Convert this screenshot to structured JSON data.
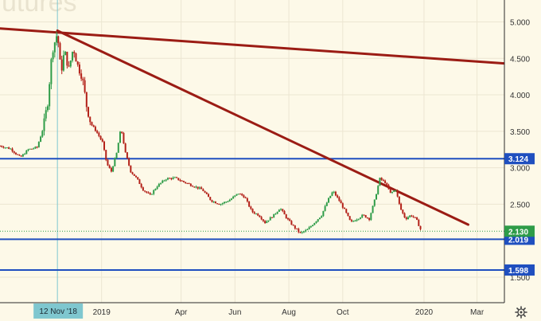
{
  "watermark": "utures",
  "chart_data": {
    "type": "candlestick",
    "y_axis": {
      "ticks": [
        "5.000",
        "4.500",
        "4.000",
        "3.500",
        "3.000",
        "2.500",
        "1.500"
      ],
      "tick_values": [
        5.0,
        4.5,
        4.0,
        3.5,
        3.0,
        2.5,
        1.5
      ],
      "range": [
        1.15,
        5.3
      ]
    },
    "x_axis": {
      "ticks": [
        "2019",
        "Apr",
        "Jun",
        "Aug",
        "Oct",
        "2020",
        "Mar"
      ],
      "tick_dates": [
        "2019-01-01",
        "2019-04-01",
        "2019-06-01",
        "2019-08-01",
        "2019-10-01",
        "2020-01-01",
        "2020-03-01"
      ],
      "range": [
        "2018-09-08",
        "2020-04-01"
      ],
      "crosshair_label": "12 Nov '18",
      "crosshair_date": "2018-11-12"
    },
    "horizontal_levels": [
      {
        "value": 3.124,
        "label": "3.124",
        "color": "#1f4fbf"
      },
      {
        "value": 2.019,
        "label": "2.019",
        "color": "#1f4fbf"
      },
      {
        "value": 1.598,
        "label": "1.598",
        "color": "#1f4fbf"
      }
    ],
    "last_price": {
      "value": 2.13,
      "label": "2.130",
      "color": "#2e9c48"
    },
    "trendlines": [
      {
        "color": "#9b1c14",
        "points": [
          [
            "2018-09-08",
            4.91
          ],
          [
            "2020-04-01",
            4.43
          ]
        ]
      },
      {
        "color": "#9b1c14",
        "points": [
          [
            "2018-11-12",
            4.88
          ],
          [
            "2020-02-20",
            2.22
          ]
        ]
      }
    ],
    "series": [
      {
        "name": "",
        "up_color": "#2e9c48",
        "down_color": "#b32018",
        "points": [
          [
            "2018-09-08",
            3.3
          ],
          [
            "2018-09-20",
            3.26
          ],
          [
            "2018-10-01",
            3.14
          ],
          [
            "2018-10-10",
            3.25
          ],
          [
            "2018-10-20",
            3.28
          ],
          [
            "2018-10-27",
            3.55
          ],
          [
            "2018-11-01",
            3.9
          ],
          [
            "2018-11-06",
            4.6
          ],
          [
            "2018-11-12",
            4.85
          ],
          [
            "2018-11-16",
            4.3
          ],
          [
            "2018-11-20",
            4.6
          ],
          [
            "2018-11-25",
            4.35
          ],
          [
            "2018-11-30",
            4.65
          ],
          [
            "2018-12-05",
            4.4
          ],
          [
            "2018-12-10",
            4.25
          ],
          [
            "2018-12-15",
            3.85
          ],
          [
            "2018-12-20",
            3.6
          ],
          [
            "2018-12-26",
            3.5
          ],
          [
            "2019-01-02",
            3.35
          ],
          [
            "2019-01-07",
            3.05
          ],
          [
            "2019-01-12",
            2.95
          ],
          [
            "2019-01-18",
            3.2
          ],
          [
            "2019-01-23",
            3.55
          ],
          [
            "2019-01-28",
            3.2
          ],
          [
            "2019-02-03",
            2.95
          ],
          [
            "2019-02-10",
            2.85
          ],
          [
            "2019-02-17",
            2.7
          ],
          [
            "2019-02-25",
            2.62
          ],
          [
            "2019-03-05",
            2.75
          ],
          [
            "2019-03-15",
            2.85
          ],
          [
            "2019-03-25",
            2.86
          ],
          [
            "2019-04-05",
            2.8
          ],
          [
            "2019-04-15",
            2.75
          ],
          [
            "2019-04-25",
            2.7
          ],
          [
            "2019-05-05",
            2.55
          ],
          [
            "2019-05-15",
            2.5
          ],
          [
            "2019-05-25",
            2.55
          ],
          [
            "2019-06-05",
            2.65
          ],
          [
            "2019-06-12",
            2.6
          ],
          [
            "2019-06-20",
            2.4
          ],
          [
            "2019-06-28",
            2.35
          ],
          [
            "2019-07-05",
            2.25
          ],
          [
            "2019-07-15",
            2.35
          ],
          [
            "2019-07-22",
            2.45
          ],
          [
            "2019-07-30",
            2.3
          ],
          [
            "2019-08-06",
            2.2
          ],
          [
            "2019-08-14",
            2.1
          ],
          [
            "2019-08-22",
            2.15
          ],
          [
            "2019-08-30",
            2.25
          ],
          [
            "2019-09-07",
            2.35
          ],
          [
            "2019-09-14",
            2.55
          ],
          [
            "2019-09-20",
            2.68
          ],
          [
            "2019-09-27",
            2.55
          ],
          [
            "2019-10-04",
            2.4
          ],
          [
            "2019-10-10",
            2.25
          ],
          [
            "2019-10-17",
            2.3
          ],
          [
            "2019-10-24",
            2.35
          ],
          [
            "2019-10-31",
            2.3
          ],
          [
            "2019-11-06",
            2.55
          ],
          [
            "2019-11-12",
            2.85
          ],
          [
            "2019-11-18",
            2.8
          ],
          [
            "2019-11-24",
            2.65
          ],
          [
            "2019-11-30",
            2.7
          ],
          [
            "2019-12-05",
            2.45
          ],
          [
            "2019-12-11",
            2.3
          ],
          [
            "2019-12-17",
            2.35
          ],
          [
            "2019-12-23",
            2.3
          ],
          [
            "2019-12-29",
            2.13
          ]
        ]
      }
    ]
  }
}
